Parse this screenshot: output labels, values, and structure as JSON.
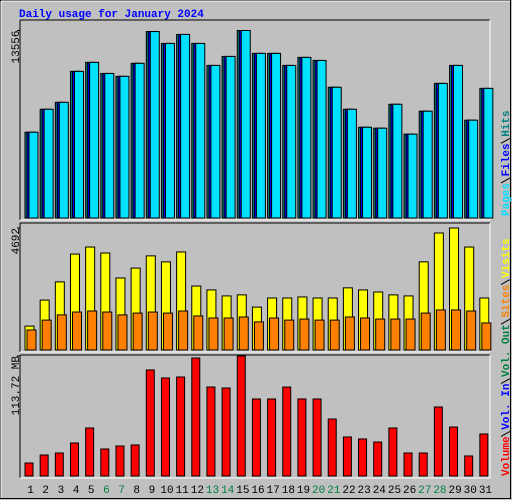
{
  "chart_data": [
    {
      "type": "bar",
      "title": "Daily usage for January 2024",
      "ylim": [
        0,
        14170
      ],
      "yticks": [
        13556
      ],
      "series": [
        {
          "name": "Hits",
          "color": "#008080",
          "values": [
            6200,
            7860,
            8360,
            10600,
            11250,
            10450,
            10240,
            11180,
            13480,
            12620,
            13270,
            12620,
            11030,
            11680,
            13556,
            11900,
            11900,
            11030,
            11610,
            11390,
            9450,
            7860,
            6560,
            6490,
            8220,
            6060,
            7720,
            9730,
            11030,
            7070,
            9370
          ]
        },
        {
          "name": "Files",
          "color": "#0000ff",
          "values": [
            6200,
            7860,
            8360,
            10600,
            11250,
            10450,
            10240,
            11180,
            13480,
            12620,
            13270,
            12620,
            11030,
            11680,
            13556,
            11900,
            11900,
            11030,
            11610,
            11390,
            9450,
            7860,
            6560,
            6490,
            8220,
            6060,
            7720,
            9730,
            11030,
            7070,
            9370
          ]
        },
        {
          "name": "Pages",
          "color": "#00e0ff",
          "values": [
            6200,
            7860,
            8360,
            10600,
            11250,
            10450,
            10240,
            11180,
            13480,
            12620,
            13270,
            12620,
            11030,
            11680,
            13556,
            11900,
            11900,
            11030,
            11610,
            11390,
            9450,
            7860,
            6560,
            6490,
            8220,
            6060,
            7720,
            9730,
            11030,
            7070,
            9370
          ]
        }
      ]
    },
    {
      "type": "bar",
      "ylim": [
        0,
        4769
      ],
      "yticks": [
        4692
      ],
      "series": [
        {
          "name": "Visits",
          "color": "#ffff00",
          "values": [
            920,
            1920,
            2620,
            3690,
            3960,
            3730,
            2770,
            3150,
            3620,
            3390,
            3770,
            2460,
            2310,
            2080,
            2120,
            1650,
            2000,
            2000,
            2040,
            2000,
            2000,
            2390,
            2310,
            2230,
            2120,
            2080,
            3390,
            4500,
            4692,
            3960,
            2000
          ]
        },
        {
          "name": "Sites",
          "color": "#ff8000",
          "values": [
            770,
            1150,
            1350,
            1460,
            1500,
            1460,
            1350,
            1420,
            1460,
            1420,
            1500,
            1310,
            1230,
            1230,
            1270,
            1080,
            1230,
            1150,
            1190,
            1150,
            1150,
            1270,
            1230,
            1190,
            1190,
            1190,
            1420,
            1540,
            1540,
            1500,
            1040
          ]
        }
      ]
    },
    {
      "type": "bar",
      "ylim": [
        0,
        115.6
      ],
      "yticks": [
        {
          "value": 113.72,
          "label": "113.72 MB"
        }
      ],
      "categories": [
        "1",
        "2",
        "3",
        "4",
        "5",
        "6",
        "7",
        "8",
        "9",
        "10",
        "11",
        "12",
        "13",
        "14",
        "15",
        "16",
        "17",
        "18",
        "19",
        "20",
        "21",
        "22",
        "23",
        "24",
        "25",
        "26",
        "27",
        "28",
        "29",
        "30",
        "31"
      ],
      "category_colors": [
        "#000000",
        "#000000",
        "#000000",
        "#000000",
        "#000000",
        "#008040",
        "#008040",
        "#000000",
        "#000000",
        "#000000",
        "#000000",
        "#000000",
        "#008040",
        "#008040",
        "#000000",
        "#000000",
        "#000000",
        "#000000",
        "#000000",
        "#008040",
        "#008040",
        "#000000",
        "#000000",
        "#000000",
        "#000000",
        "#000000",
        "#008040",
        "#008040",
        "#000000",
        "#000000",
        "#000000"
      ],
      "series": [
        {
          "name": "Volume",
          "color": "#ff0000",
          "values": [
            12.3,
            19.9,
            21.8,
            31.3,
            45.5,
            25.6,
            28.4,
            29.4,
            100.5,
            92.9,
            93.8,
            111.8,
            84.3,
            83.4,
            113.72,
            73.0,
            73.0,
            84.3,
            73.0,
            73.0,
            54.0,
            37.0,
            35.1,
            32.2,
            45.5,
            21.8,
            21.8,
            65.4,
            46.4,
            19.0,
            39.8
          ]
        },
        {
          "name": "Vol. In",
          "color": "#0000ff"
        },
        {
          "name": "Vol. Out",
          "color": "#008040"
        }
      ]
    }
  ]
}
